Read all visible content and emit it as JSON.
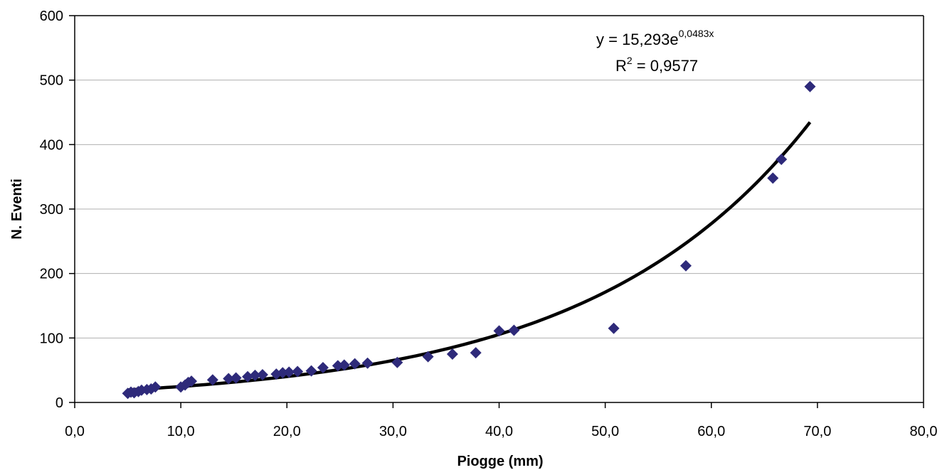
{
  "chart_data": {
    "type": "scatter",
    "title": "",
    "xlabel": "Piogge (mm)",
    "ylabel": "N. Eventi",
    "xlim": [
      0,
      80
    ],
    "ylim": [
      0,
      600
    ],
    "x_ticks": [
      "0,0",
      "10,0",
      "20,0",
      "30,0",
      "40,0",
      "50,0",
      "60,0",
      "70,0",
      "80,0"
    ],
    "y_ticks": [
      "0",
      "100",
      "200",
      "300",
      "400",
      "500",
      "600"
    ],
    "grid": "horizontal",
    "legend": "none",
    "marker_color": "#2e2a7a",
    "trendline_color": "#000000",
    "series": [
      {
        "marker": "diamond",
        "points": [
          [
            5.0,
            14
          ],
          [
            5.3,
            16
          ],
          [
            5.6,
            15
          ],
          [
            6.0,
            17
          ],
          [
            6.3,
            19
          ],
          [
            6.8,
            20
          ],
          [
            7.2,
            21
          ],
          [
            7.6,
            24
          ],
          [
            10.0,
            24
          ],
          [
            10.4,
            27
          ],
          [
            10.7,
            31
          ],
          [
            11.0,
            33
          ],
          [
            13.0,
            35
          ],
          [
            14.5,
            37
          ],
          [
            15.2,
            38
          ],
          [
            16.3,
            40
          ],
          [
            17.0,
            42
          ],
          [
            17.7,
            43
          ],
          [
            19.0,
            44
          ],
          [
            19.6,
            46
          ],
          [
            20.2,
            47
          ],
          [
            21.0,
            48
          ],
          [
            22.3,
            49
          ],
          [
            23.4,
            54
          ],
          [
            24.8,
            57
          ],
          [
            25.4,
            58
          ],
          [
            26.4,
            60
          ],
          [
            27.6,
            61
          ],
          [
            30.4,
            62
          ],
          [
            33.3,
            71
          ],
          [
            35.6,
            75
          ],
          [
            37.8,
            77
          ],
          [
            40.0,
            111
          ],
          [
            41.4,
            112
          ],
          [
            50.8,
            115
          ],
          [
            57.6,
            212
          ],
          [
            65.8,
            348
          ],
          [
            66.6,
            377
          ],
          [
            69.3,
            490
          ]
        ]
      }
    ],
    "trendline": {
      "type": "exponential",
      "a": 15.293,
      "b": 0.0483,
      "x_range": [
        5.0,
        69.3
      ],
      "equation_prefix": "y = 15,293e",
      "equation_exponent": "0,0483x",
      "r2_prefix": "R",
      "r2_exponent": "2",
      "r2_suffix": " = 0,9577"
    }
  }
}
